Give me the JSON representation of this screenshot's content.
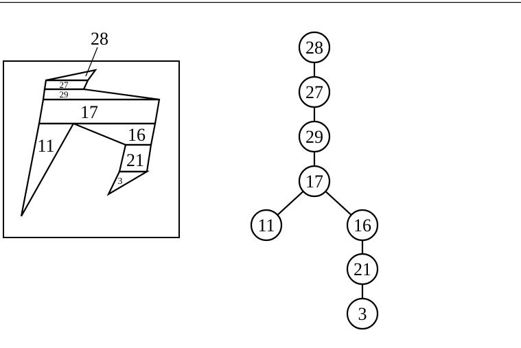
{
  "figure": {
    "region_labels": {
      "r28": "28",
      "r27": "27",
      "r29": "29",
      "r17": "17",
      "r16": "16",
      "r11": "11",
      "r21": "21",
      "r3": "3"
    },
    "tree": {
      "nodes": [
        {
          "id": "n28",
          "label": "28"
        },
        {
          "id": "n27",
          "label": "27"
        },
        {
          "id": "n29",
          "label": "29"
        },
        {
          "id": "n17",
          "label": "17"
        },
        {
          "id": "n11",
          "label": "11"
        },
        {
          "id": "n16",
          "label": "16"
        },
        {
          "id": "n21",
          "label": "21"
        },
        {
          "id": "n3",
          "label": "3"
        }
      ],
      "edges": [
        [
          "n28",
          "n27"
        ],
        [
          "n27",
          "n29"
        ],
        [
          "n29",
          "n17"
        ],
        [
          "n17",
          "n11"
        ],
        [
          "n17",
          "n16"
        ],
        [
          "n16",
          "n21"
        ],
        [
          "n21",
          "n3"
        ]
      ]
    }
  }
}
